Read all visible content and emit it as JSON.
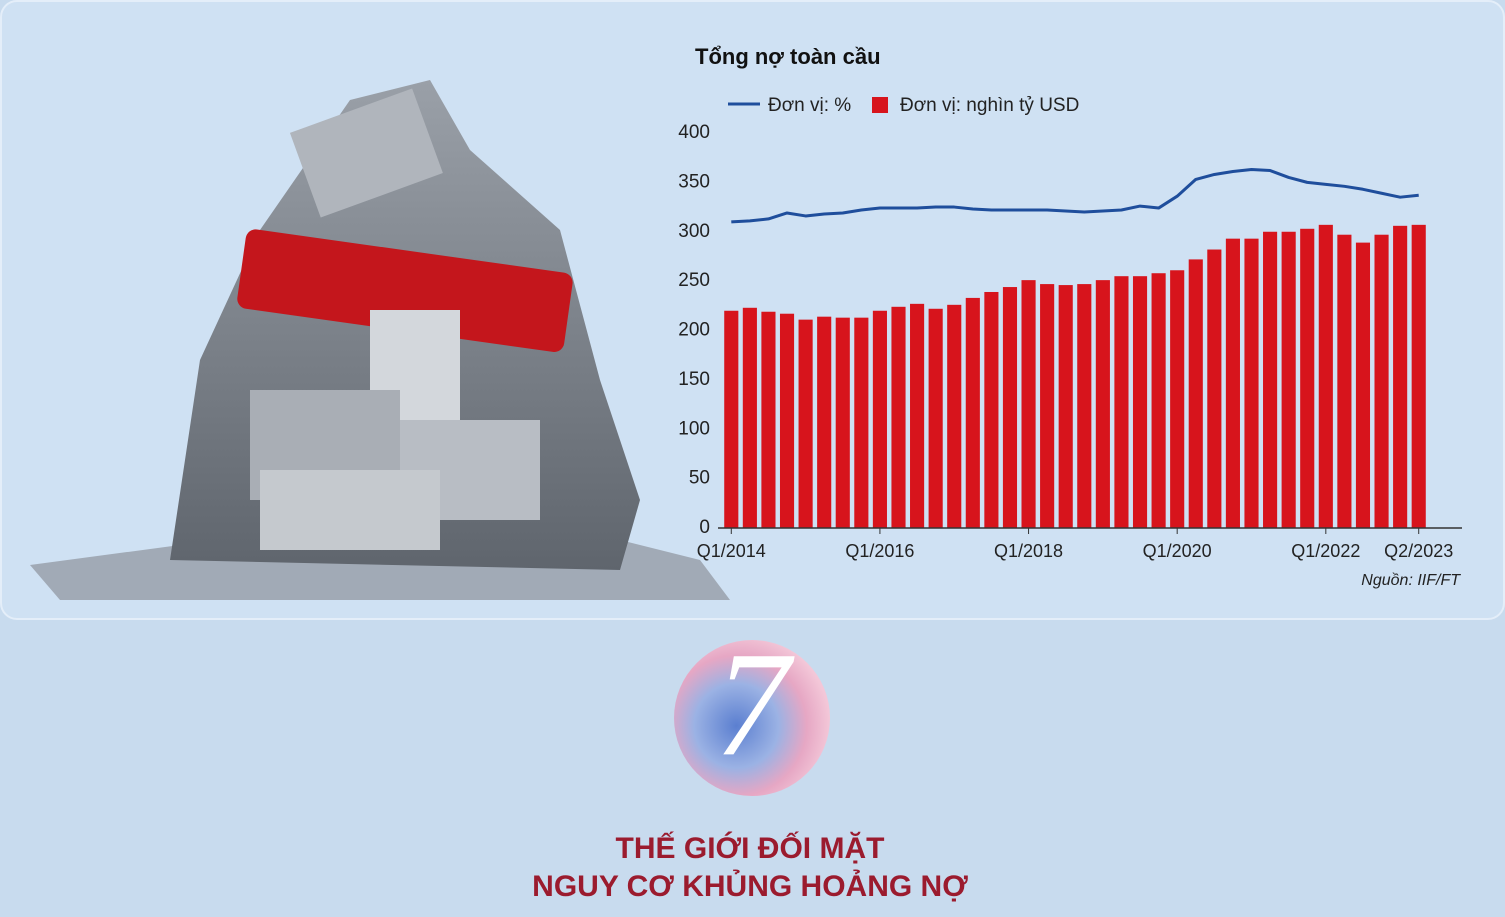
{
  "chart_data": {
    "type": "bar",
    "title": "Tổng nợ toàn cầu",
    "categories": [
      "Q1/2014",
      null,
      null,
      null,
      null,
      null,
      null,
      null,
      "Q1/2016",
      null,
      null,
      null,
      null,
      null,
      null,
      null,
      "Q1/2018",
      null,
      null,
      null,
      null,
      null,
      null,
      null,
      "Q1/2020",
      null,
      null,
      null,
      null,
      null,
      null,
      null,
      "Q1/2022",
      null,
      null,
      null,
      null,
      "Q2/2023"
    ],
    "series": [
      {
        "name": "Đơn vị: %",
        "type": "line",
        "color": "#1f4e9c",
        "values": [
          310,
          311,
          313,
          319,
          316,
          318,
          319,
          322,
          324,
          324,
          324,
          325,
          325,
          323,
          322,
          322,
          322,
          322,
          321,
          320,
          321,
          322,
          326,
          324,
          336,
          353,
          358,
          361,
          363,
          362,
          355,
          350,
          348,
          346,
          343,
          339,
          335,
          337
        ]
      },
      {
        "name": "Đơn vị: nghìn tỷ USD",
        "type": "bar",
        "color": "#d7141c",
        "values": [
          220,
          223,
          219,
          217,
          211,
          214,
          213,
          213,
          220,
          224,
          227,
          222,
          226,
          233,
          239,
          244,
          251,
          247,
          246,
          247,
          251,
          255,
          255,
          258,
          261,
          272,
          282,
          293,
          293,
          300,
          300,
          303,
          307,
          297,
          289,
          297,
          306,
          307
        ]
      }
    ],
    "ylim": [
      0,
      400
    ],
    "yticks": [
      0,
      50,
      100,
      150,
      200,
      250,
      300,
      350,
      400
    ],
    "grid": false,
    "source": "Nguồn: IIF/FT"
  },
  "badge": "7",
  "headline": [
    "THẾ GIỚI ĐỐI MẶT",
    "NGUY CƠ KHỦNG HOẢNG NỢ"
  ]
}
